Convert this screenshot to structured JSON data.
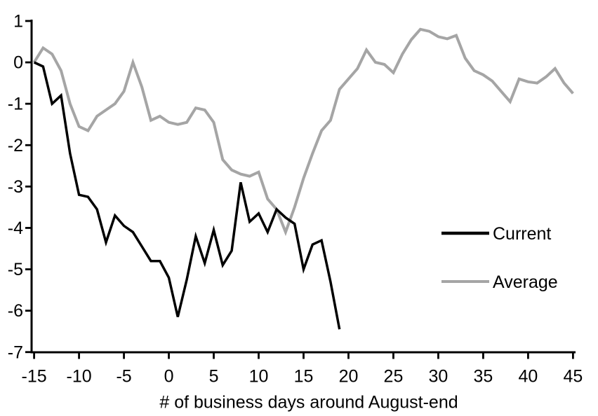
{
  "chart_data": {
    "type": "line",
    "title": "",
    "xlabel": "# of business days around August-end",
    "ylabel": "",
    "xlim": [
      -15,
      45
    ],
    "ylim": [
      -7,
      1
    ],
    "x_ticks": [
      -15,
      -10,
      -5,
      0,
      5,
      10,
      15,
      20,
      25,
      30,
      35,
      40,
      45
    ],
    "y_ticks": [
      1,
      0,
      -1,
      -2,
      -3,
      -4,
      -5,
      -6,
      -7
    ],
    "grid": false,
    "legend_position": "middle-right",
    "series": [
      {
        "name": "Current",
        "color": "#000000",
        "x": [
          -15,
          -14,
          -13,
          -12,
          -11,
          -10,
          -9,
          -8,
          -7,
          -6,
          -5,
          -4,
          -3,
          -2,
          -1,
          0,
          1,
          2,
          3,
          4,
          5,
          6,
          7,
          8,
          9,
          10,
          11,
          12,
          13,
          14,
          15,
          16,
          17,
          18,
          19
        ],
        "values": [
          0,
          -0.1,
          -1.0,
          -0.8,
          -2.2,
          -3.2,
          -3.25,
          -3.55,
          -4.35,
          -3.7,
          -3.95,
          -4.1,
          -4.45,
          -4.8,
          -4.8,
          -5.2,
          -6.15,
          -5.25,
          -4.2,
          -4.85,
          -4.05,
          -4.9,
          -4.55,
          -2.9,
          -3.85,
          -3.65,
          -4.1,
          -3.55,
          -3.75,
          -3.9,
          -5.0,
          -4.4,
          -4.3,
          -5.3,
          -6.45
        ]
      },
      {
        "name": "Average",
        "color": "#a5a5a5",
        "x": [
          -15,
          -14,
          -13,
          -12,
          -11,
          -10,
          -9,
          -8,
          -7,
          -6,
          -5,
          -4,
          -3,
          -2,
          -1,
          0,
          1,
          2,
          3,
          4,
          5,
          6,
          7,
          8,
          9,
          10,
          11,
          12,
          13,
          14,
          15,
          16,
          17,
          18,
          19,
          20,
          21,
          22,
          23,
          24,
          25,
          26,
          27,
          28,
          29,
          30,
          31,
          32,
          33,
          34,
          35,
          36,
          37,
          38,
          39,
          40,
          41,
          42,
          43,
          44,
          45
        ],
        "values": [
          0,
          0.35,
          0.2,
          -0.2,
          -1.0,
          -1.55,
          -1.65,
          -1.3,
          -1.15,
          -1.0,
          -0.7,
          0.0,
          -0.6,
          -1.4,
          -1.3,
          -1.45,
          -1.5,
          -1.45,
          -1.1,
          -1.15,
          -1.45,
          -2.35,
          -2.6,
          -2.7,
          -2.75,
          -2.65,
          -3.3,
          -3.55,
          -4.1,
          -3.5,
          -2.8,
          -2.2,
          -1.65,
          -1.4,
          -0.65,
          -0.4,
          -0.15,
          0.3,
          0.0,
          -0.05,
          -0.25,
          0.2,
          0.55,
          0.8,
          0.75,
          0.62,
          0.57,
          0.65,
          0.1,
          -0.2,
          -0.3,
          -0.45,
          -0.7,
          -0.95,
          -0.4,
          -0.47,
          -0.5,
          -0.35,
          -0.15,
          -0.5,
          -0.75
        ]
      }
    ]
  },
  "colors": {
    "axis": "#000000",
    "background": "#ffffff"
  }
}
